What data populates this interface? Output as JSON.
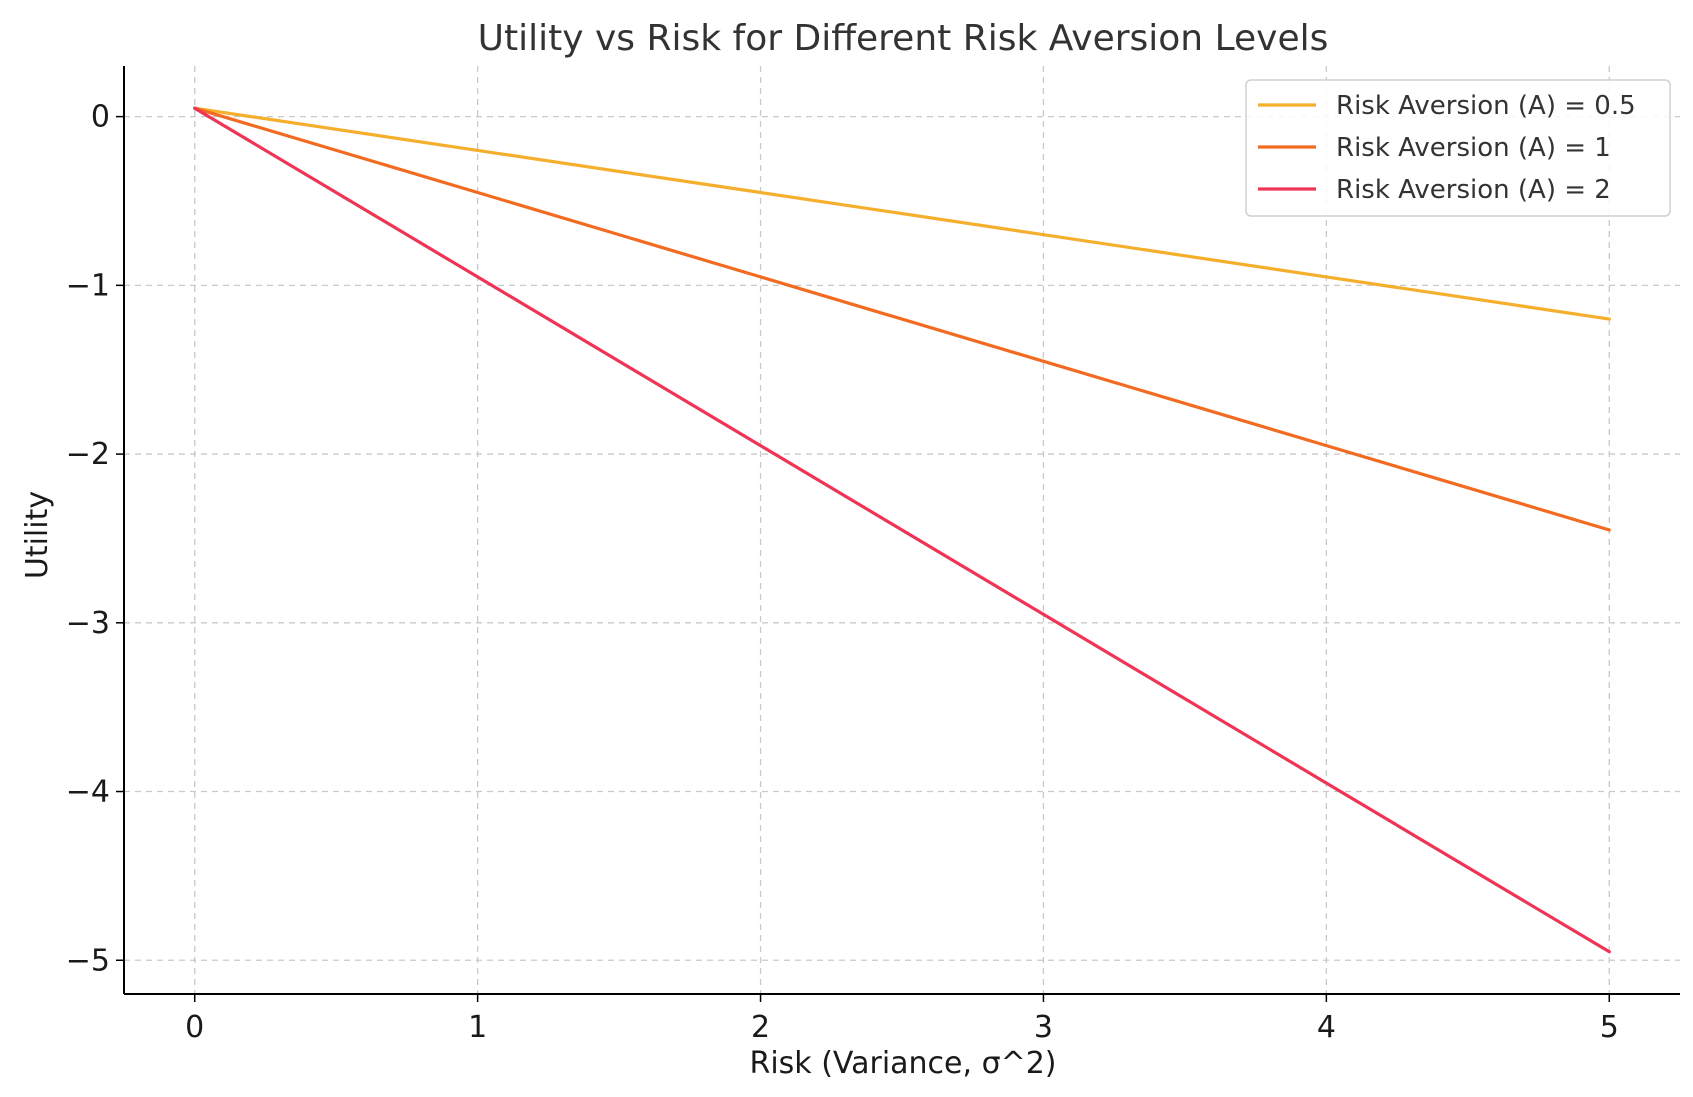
{
  "chart_data": {
    "type": "line",
    "title": "Utility vs Risk for Different Risk Aversion Levels",
    "xlabel": "Risk (Variance, σ^2)",
    "ylabel": "Utility",
    "xlim": [
      -0.25,
      5.25
    ],
    "ylim": [
      -5.2,
      0.3
    ],
    "xticks": [
      0,
      1,
      2,
      3,
      4,
      5
    ],
    "xtick_labels": [
      "0",
      "1",
      "2",
      "3",
      "4",
      "5"
    ],
    "yticks": [
      0,
      -1,
      -2,
      -3,
      -4,
      -5
    ],
    "ytick_labels": [
      "0",
      "−1",
      "−2",
      "−3",
      "−4",
      "−5"
    ],
    "grid": true,
    "legend_position": "top-right",
    "x": [
      0,
      1,
      2,
      3,
      4,
      5
    ],
    "series": [
      {
        "name": "Risk Aversion (A) = 0.5",
        "color": "#f6ae2d",
        "values": [
          0.05,
          -0.2,
          -0.45,
          -0.7,
          -0.95,
          -1.2
        ]
      },
      {
        "name": "Risk Aversion (A) = 1",
        "color": "#f26b21",
        "values": [
          0.05,
          -0.45,
          -0.95,
          -1.45,
          -1.95,
          -2.45
        ]
      },
      {
        "name": "Risk Aversion (A) = 2",
        "color": "#ef3456",
        "values": [
          0.05,
          -0.95,
          -1.95,
          -2.95,
          -3.95,
          -4.95
        ]
      }
    ]
  }
}
